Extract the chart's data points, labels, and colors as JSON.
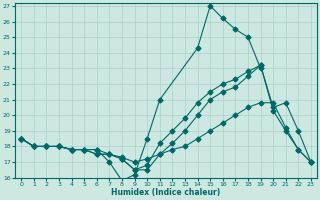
{
  "xlabel": "Humidex (Indice chaleur)",
  "bg_color": "#cce8e0",
  "grid_color": "#aad0c8",
  "line_color": "#006868",
  "xlim": [
    -0.5,
    23.5
  ],
  "ylim": [
    16,
    27.2
  ],
  "xticks": [
    0,
    1,
    2,
    3,
    4,
    5,
    6,
    7,
    8,
    9,
    10,
    11,
    12,
    13,
    14,
    15,
    16,
    17,
    18,
    19,
    20,
    21,
    22,
    23
  ],
  "yticks": [
    16,
    17,
    18,
    19,
    20,
    21,
    22,
    23,
    24,
    25,
    26,
    27
  ],
  "line1_x": [
    0,
    1,
    2,
    3,
    4,
    5,
    6,
    7,
    8,
    9,
    10,
    11,
    14,
    15,
    16,
    17,
    18,
    19
  ],
  "line1_y": [
    18.5,
    18.0,
    18.0,
    18.0,
    17.8,
    17.8,
    17.8,
    17.0,
    15.8,
    16.2,
    18.5,
    21.0,
    24.3,
    27.0,
    26.2,
    25.5,
    25.0,
    23.0
  ],
  "line2_x": [
    0,
    1,
    2,
    3,
    4,
    5,
    6,
    7,
    8,
    9,
    10,
    11,
    12,
    13,
    14,
    15,
    16,
    17,
    18,
    19,
    20,
    21,
    22,
    23
  ],
  "line2_y": [
    18.5,
    18.0,
    18.0,
    18.0,
    17.8,
    17.8,
    17.8,
    17.5,
    17.3,
    17.0,
    17.2,
    17.5,
    17.8,
    18.0,
    18.5,
    19.0,
    19.5,
    20.0,
    20.5,
    20.8,
    20.8,
    19.2,
    17.8,
    17.0
  ],
  "line3_x": [
    0,
    1,
    2,
    3,
    4,
    5,
    6,
    7,
    8,
    9,
    10,
    11,
    12,
    13,
    14,
    15,
    16,
    17,
    18,
    19,
    20,
    21,
    22,
    23
  ],
  "line3_y": [
    18.5,
    18.0,
    18.0,
    18.0,
    17.8,
    17.8,
    17.5,
    17.5,
    17.2,
    16.5,
    16.8,
    18.2,
    19.0,
    19.8,
    20.8,
    21.5,
    22.0,
    22.3,
    22.8,
    23.2,
    20.3,
    19.0,
    17.8,
    17.0
  ],
  "line4_x": [
    0,
    1,
    2,
    3,
    4,
    5,
    6,
    7,
    8,
    9,
    10,
    11,
    12,
    13,
    14,
    15,
    16,
    17,
    18,
    19,
    20,
    21,
    22,
    23
  ],
  "line4_y": [
    18.5,
    18.0,
    18.0,
    18.0,
    17.8,
    17.8,
    17.5,
    17.5,
    17.2,
    16.5,
    16.5,
    17.5,
    18.2,
    19.0,
    20.0,
    21.0,
    21.5,
    21.8,
    22.5,
    23.2,
    20.5,
    20.8,
    19.0,
    17.0
  ]
}
